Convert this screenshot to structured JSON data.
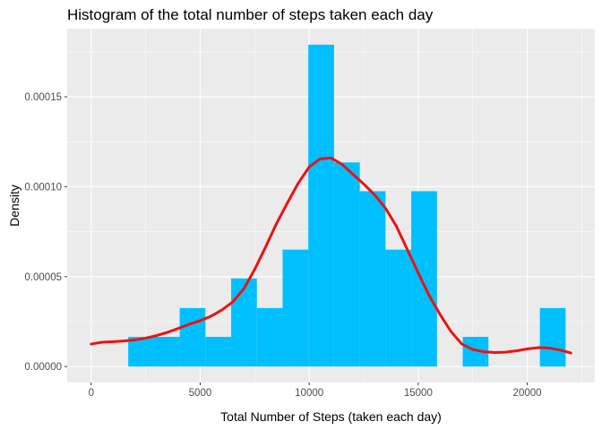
{
  "chart_data": {
    "type": "bar",
    "title": "Histogram of the total number of steps taken each day",
    "xlabel": "Total Number of Steps (taken each day)",
    "ylabel": "Density",
    "xlim": [
      -1100,
      23100
    ],
    "ylim": [
      -8.9e-06,
      0.0001879
    ],
    "x_ticks": [
      0,
      5000,
      10000,
      15000,
      20000
    ],
    "x_tick_labels": [
      "0",
      "5000",
      "10000",
      "15000",
      "20000"
    ],
    "y_ticks": [
      0,
      5e-05,
      0.0001,
      0.00015
    ],
    "y_tick_labels": [
      "0.00000",
      "0.00005",
      "0.00010",
      "0.00015"
    ],
    "grid": true,
    "background": "#ebebeb",
    "bar_color": "#00bfff",
    "curve_color": "#ee1111",
    "bins": [
      {
        "x0": 1700,
        "x1": 2880,
        "density": 1.65e-05
      },
      {
        "x0": 2880,
        "x1": 4060,
        "density": 1.65e-05
      },
      {
        "x0": 4060,
        "x1": 5240,
        "density": 3.25e-05
      },
      {
        "x0": 5240,
        "x1": 6420,
        "density": 1.65e-05
      },
      {
        "x0": 6420,
        "x1": 7600,
        "density": 4.9e-05
      },
      {
        "x0": 7600,
        "x1": 8780,
        "density": 3.25e-05
      },
      {
        "x0": 8780,
        "x1": 9960,
        "density": 6.5e-05
      },
      {
        "x0": 9960,
        "x1": 11140,
        "density": 0.000179
      },
      {
        "x0": 11140,
        "x1": 12320,
        "density": 0.0001135
      },
      {
        "x0": 12320,
        "x1": 13500,
        "density": 9.75e-05
      },
      {
        "x0": 13500,
        "x1": 14680,
        "density": 6.5e-05
      },
      {
        "x0": 14680,
        "x1": 15860,
        "density": 9.75e-05
      },
      {
        "x0": 15860,
        "x1": 17040,
        "density": 0
      },
      {
        "x0": 17040,
        "x1": 18220,
        "density": 1.65e-05
      },
      {
        "x0": 18220,
        "x1": 19400,
        "density": 0
      },
      {
        "x0": 19400,
        "x1": 20580,
        "density": 0
      },
      {
        "x0": 20580,
        "x1": 21760,
        "density": 3.25e-05
      }
    ],
    "series": [
      {
        "type": "line",
        "x": [
          0,
          500,
          1000,
          1500,
          2000,
          2500,
          3000,
          3500,
          4000,
          4500,
          5000,
          5500,
          6000,
          6500,
          7000,
          7500,
          8000,
          8500,
          9000,
          9500,
          10000,
          10500,
          11000,
          11500,
          12000,
          12500,
          13000,
          13500,
          14000,
          14500,
          15000,
          15500,
          16000,
          16500,
          17000,
          17500,
          18000,
          18500,
          19000,
          19500,
          20000,
          20500,
          21000,
          21500,
          22000
        ],
        "y": [
          1.25e-05,
          1.35e-05,
          1.38e-05,
          1.42e-05,
          1.48e-05,
          1.58e-05,
          1.72e-05,
          1.9e-05,
          2.12e-05,
          2.35e-05,
          2.55e-05,
          2.8e-05,
          3.15e-05,
          3.6e-05,
          4.32e-05,
          5.4e-05,
          6.65e-05,
          7.95e-05,
          9.1e-05,
          0.000102,
          0.000111,
          0.0001155,
          0.000116,
          0.0001125,
          0.000107,
          0.0001015,
          9.55e-05,
          8.8e-05,
          7.8e-05,
          6.5e-05,
          5.2e-05,
          3.95e-05,
          2.9e-05,
          1.95e-05,
          1.25e-05,
          9.5e-06,
          8.2e-06,
          7.8e-06,
          8e-06,
          8.7e-06,
          9.8e-06,
          1.05e-05,
          1.03e-05,
          9.2e-06,
          7.5e-06
        ]
      }
    ]
  }
}
